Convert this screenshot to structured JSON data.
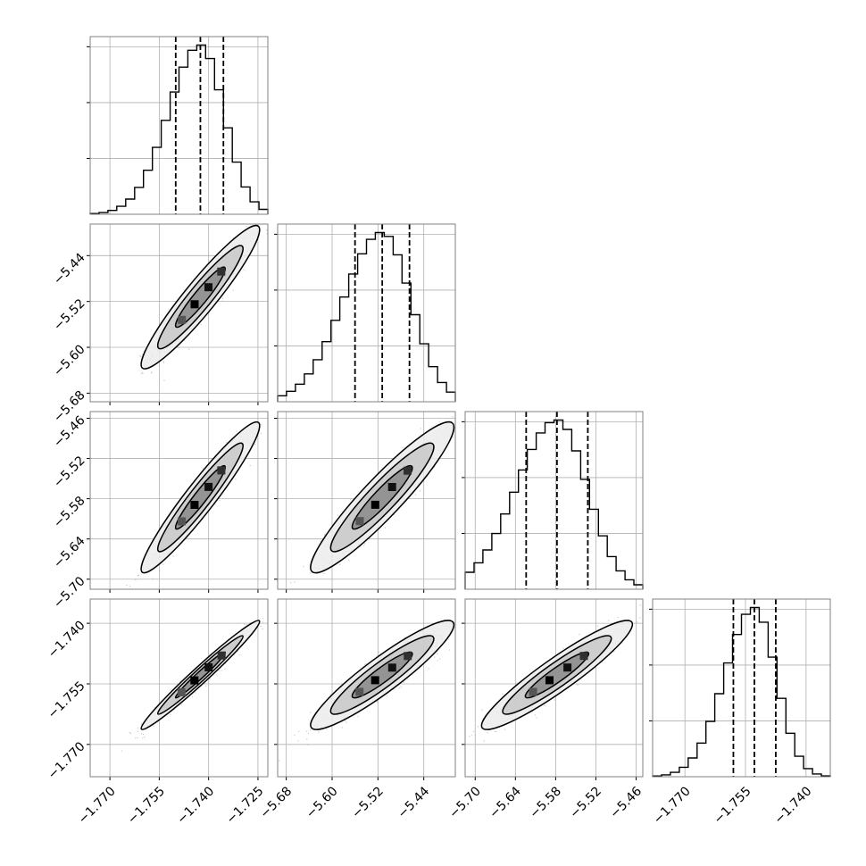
{
  "chart_data": {
    "type": "corner",
    "n_params": 4,
    "labels": [
      "",
      "",
      "",
      ""
    ],
    "ranges": [
      [
        -1.776,
        -1.722
      ],
      [
        -5.695,
        -5.385
      ],
      [
        -5.715,
        -5.45
      ],
      [
        -1.778,
        -1.734
      ]
    ],
    "x_ticks": [
      [
        -1.77,
        -1.755,
        -1.74,
        -1.725
      ],
      [
        -5.68,
        -5.6,
        -5.52,
        -5.44
      ],
      [
        -5.7,
        -5.64,
        -5.58,
        -5.52,
        -5.46
      ],
      [
        -1.77,
        -1.755,
        -1.74
      ]
    ],
    "x_tick_labels": [
      [
        "−1.770",
        "−1.755",
        "−1.740",
        "−1.725"
      ],
      [
        "−5.68",
        "−5.60",
        "−5.52",
        "−5.44"
      ],
      [
        "−5.70",
        "−5.64",
        "−5.58",
        "−5.52",
        "−5.46"
      ],
      [
        "−1.770",
        "−1.755",
        "−1.740"
      ]
    ],
    "y_ticks": {
      "1": [
        -5.44,
        -5.52,
        -5.6,
        -5.68
      ],
      "2": [
        -5.46,
        -5.52,
        -5.58,
        -5.64,
        -5.7
      ],
      "3": [
        -1.74,
        -1.755,
        -1.77
      ]
    },
    "y_tick_labels": {
      "1": [
        "−5.44",
        "−5.52",
        "−5.60",
        "−5.68"
      ],
      "2": [
        "−5.46",
        "−5.52",
        "−5.58",
        "−5.64",
        "−5.70"
      ],
      "3": [
        "−1.740",
        "−1.755",
        "−1.770"
      ]
    },
    "means": [
      -1.7425,
      -5.5125,
      -5.578,
      -1.7528
    ],
    "sigmas": [
      0.0072,
      0.05,
      0.045,
      0.0054
    ],
    "correlations": [
      [
        1.0,
        0.94,
        0.95,
        0.98
      ],
      [
        0.94,
        1.0,
        0.93,
        0.92
      ],
      [
        0.95,
        0.93,
        1.0,
        0.93
      ],
      [
        0.98,
        0.92,
        0.93,
        1.0
      ]
    ],
    "quantiles": [
      [
        -1.75,
        -1.7425,
        -1.7355
      ],
      [
        -5.56,
        -5.5125,
        -5.465
      ],
      [
        -5.624,
        -5.578,
        -5.532
      ],
      [
        -1.758,
        -1.7528,
        -1.7475
      ]
    ],
    "histogram_bins": 20,
    "grid": true,
    "colors": {
      "line": "#000000",
      "points": "#a0a0a0",
      "grid": "#b0b0b0",
      "frame": "#808080"
    }
  }
}
